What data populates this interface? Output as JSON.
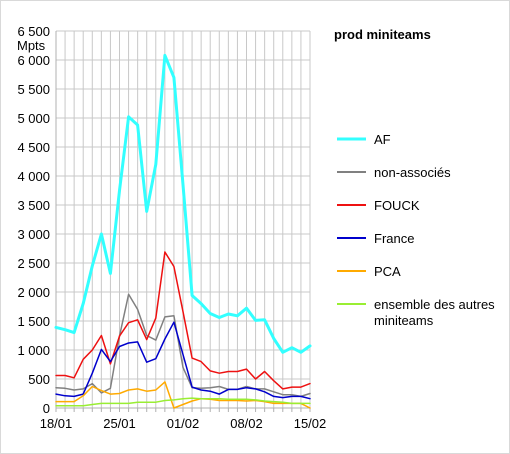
{
  "chart_data": {
    "type": "line",
    "title": "prod miniteams",
    "ylabel": "Mpts",
    "xlabel": "",
    "ylim": [
      0,
      6500
    ],
    "yticks": [
      0,
      500,
      1000,
      1500,
      2000,
      2500,
      3000,
      3500,
      4000,
      4500,
      5000,
      5500,
      6000,
      6500
    ],
    "ytick_labels": [
      "0",
      "500",
      "1 000",
      "1 500",
      "2 000",
      "2 500",
      "3 000",
      "3 500",
      "4 000",
      "4 500",
      "5 000",
      "5 500",
      "6 000",
      "6 500"
    ],
    "x_start": "18/01",
    "xticks": [
      "18/01",
      "25/01",
      "01/02",
      "08/02",
      "15/02"
    ],
    "grid": true,
    "legend_position": "right",
    "x": [
      "18/01",
      "19/01",
      "20/01",
      "21/01",
      "22/01",
      "23/01",
      "24/01",
      "25/01",
      "26/01",
      "27/01",
      "28/01",
      "29/01",
      "30/01",
      "31/01",
      "01/02",
      "02/02",
      "03/02",
      "04/02",
      "05/02",
      "06/02",
      "07/02",
      "08/02",
      "09/02",
      "10/02",
      "11/02",
      "12/02",
      "13/02",
      "14/02",
      "15/02"
    ],
    "series": [
      {
        "name": "AF",
        "color": "#33ffff",
        "width": 3,
        "values": [
          1390,
          1350,
          1300,
          1800,
          2450,
          3000,
          2320,
          3750,
          5020,
          4880,
          3390,
          4200,
          6080,
          5700,
          3850,
          1940,
          1800,
          1630,
          1560,
          1620,
          1590,
          1720,
          1510,
          1520,
          1200,
          960,
          1040,
          960,
          1070
        ]
      },
      {
        "name": "non-associés",
        "color": "#808080",
        "width": 1.5,
        "values": [
          350,
          340,
          310,
          330,
          420,
          260,
          340,
          1240,
          1960,
          1700,
          1250,
          1170,
          1570,
          1590,
          700,
          350,
          340,
          350,
          370,
          320,
          320,
          370,
          330,
          330,
          280,
          230,
          230,
          200,
          250
        ]
      },
      {
        "name": "FOUCK",
        "color": "#ee1111",
        "width": 1.5,
        "values": [
          560,
          560,
          520,
          840,
          1000,
          1250,
          760,
          1240,
          1470,
          1520,
          1180,
          1550,
          2690,
          2440,
          1660,
          860,
          800,
          640,
          600,
          630,
          630,
          670,
          500,
          630,
          470,
          330,
          360,
          360,
          420
        ]
      },
      {
        "name": "France",
        "color": "#0000cc",
        "width": 1.5,
        "values": [
          240,
          210,
          200,
          240,
          600,
          1010,
          800,
          1060,
          1120,
          1140,
          790,
          850,
          1190,
          1480,
          920,
          360,
          310,
          290,
          240,
          320,
          320,
          350,
          330,
          280,
          200,
          180,
          200,
          200,
          160
        ]
      },
      {
        "name": "PCA",
        "color": "#ffaa00",
        "width": 1.5,
        "values": [
          110,
          110,
          110,
          210,
          370,
          300,
          240,
          250,
          310,
          330,
          290,
          310,
          450,
          0,
          60,
          120,
          160,
          150,
          130,
          130,
          130,
          120,
          130,
          110,
          80,
          80,
          80,
          80,
          0
        ]
      },
      {
        "name": "ensemble des autres miniteams",
        "legend_lines": [
          "ensemble des autres",
          "miniteams"
        ],
        "color": "#99ee33",
        "width": 1.5,
        "values": [
          40,
          40,
          40,
          40,
          60,
          80,
          80,
          80,
          80,
          100,
          100,
          100,
          130,
          140,
          160,
          170,
          160,
          160,
          160,
          150,
          150,
          150,
          140,
          120,
          110,
          100,
          80,
          80,
          80
        ]
      }
    ]
  }
}
